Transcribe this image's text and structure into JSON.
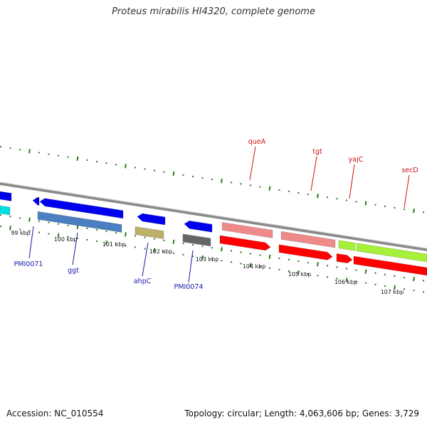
{
  "title": "Proteus mirabilis HI4320, complete genome",
  "footer": {
    "accession": "Accession: NC_010554",
    "stats": "Topology: circular; Length: 4,063,606 bp; Genes: 3,729"
  },
  "colors": {
    "tick": "#2e7d1e",
    "backbone": "#8a8a8a",
    "label_forward": "#cc1111",
    "label_reverse": "#1a1aaa"
  },
  "kbp_labels": [
    "99 kbp",
    "100 kbp",
    "101 kbp",
    "102 kbp",
    "103 kbp",
    "104 kbp",
    "105 kbp",
    "106 kbp",
    "107 kbp"
  ],
  "genes": [
    {
      "name": "queA",
      "strand": "+",
      "label_color": "#cc1111",
      "arrow_color": "#ff0000",
      "ring_color": "#ef8a8a"
    },
    {
      "name": "tgt",
      "strand": "+",
      "label_color": "#cc1111",
      "arrow_color": "#ff0000",
      "ring_color": "#ef8a8a"
    },
    {
      "name": "yajC",
      "strand": "+",
      "label_color": "#cc1111",
      "arrow_color": "#ff0000",
      "ring_color": "#a6f03a"
    },
    {
      "name": "secD",
      "strand": "+",
      "label_color": "#cc1111",
      "arrow_color": "#ff0000",
      "ring_color": "#a6f03a"
    },
    {
      "name": "PMI0071",
      "strand": "-",
      "label_color": "#1a1aaa",
      "arrow_color": "#0000ee",
      "ring_color": "#4a7fc0"
    },
    {
      "name": "ggt",
      "strand": "-",
      "label_color": "#1a1aaa",
      "arrow_color": "#0000ee",
      "ring_color": "#4a7fc0"
    },
    {
      "name": "ahpC",
      "strand": "-",
      "label_color": "#1a1aaa",
      "arrow_color": "#0000ee",
      "ring_color": "#bdb06a"
    },
    {
      "name": "PMI0074",
      "strand": "-",
      "label_color": "#1a1aaa",
      "arrow_color": "#0000ee",
      "ring_color": "#666666"
    }
  ]
}
